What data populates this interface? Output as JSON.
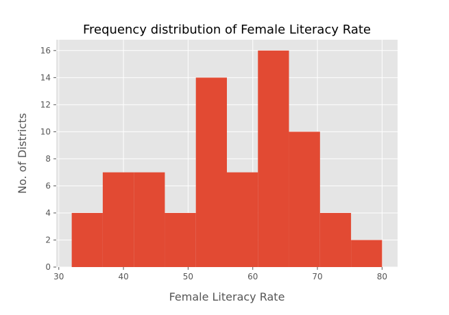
{
  "chart_data": {
    "type": "bar",
    "title": "Frequency distribution of Female Literacy Rate",
    "xlabel": "Female Literacy Rate",
    "ylabel": "No. of Districts",
    "bins": [
      {
        "x0": 32.0,
        "x1": 36.8,
        "value": 4
      },
      {
        "x0": 36.8,
        "x1": 41.6,
        "value": 7
      },
      {
        "x0": 41.6,
        "x1": 46.4,
        "value": 7
      },
      {
        "x0": 46.4,
        "x1": 51.2,
        "value": 4
      },
      {
        "x0": 51.2,
        "x1": 56.0,
        "value": 14
      },
      {
        "x0": 56.0,
        "x1": 60.8,
        "value": 7
      },
      {
        "x0": 60.8,
        "x1": 65.6,
        "value": 16
      },
      {
        "x0": 65.6,
        "x1": 70.4,
        "value": 10
      },
      {
        "x0": 70.4,
        "x1": 75.2,
        "value": 4
      },
      {
        "x0": 75.2,
        "x1": 80.0,
        "value": 2
      }
    ],
    "xlim": [
      29.6,
      82.4
    ],
    "ylim": [
      0,
      16.8
    ],
    "xticks": [
      30,
      40,
      50,
      60,
      70,
      80
    ],
    "yticks": [
      0,
      2,
      4,
      6,
      8,
      10,
      12,
      14,
      16
    ],
    "grid": true,
    "style": "ggplot",
    "colors": {
      "bar": "#E24A33",
      "plot_background": "#E5E5E5",
      "grid": "#FFFFFF",
      "tick_text": "#555555",
      "title_text": "#000000"
    }
  }
}
